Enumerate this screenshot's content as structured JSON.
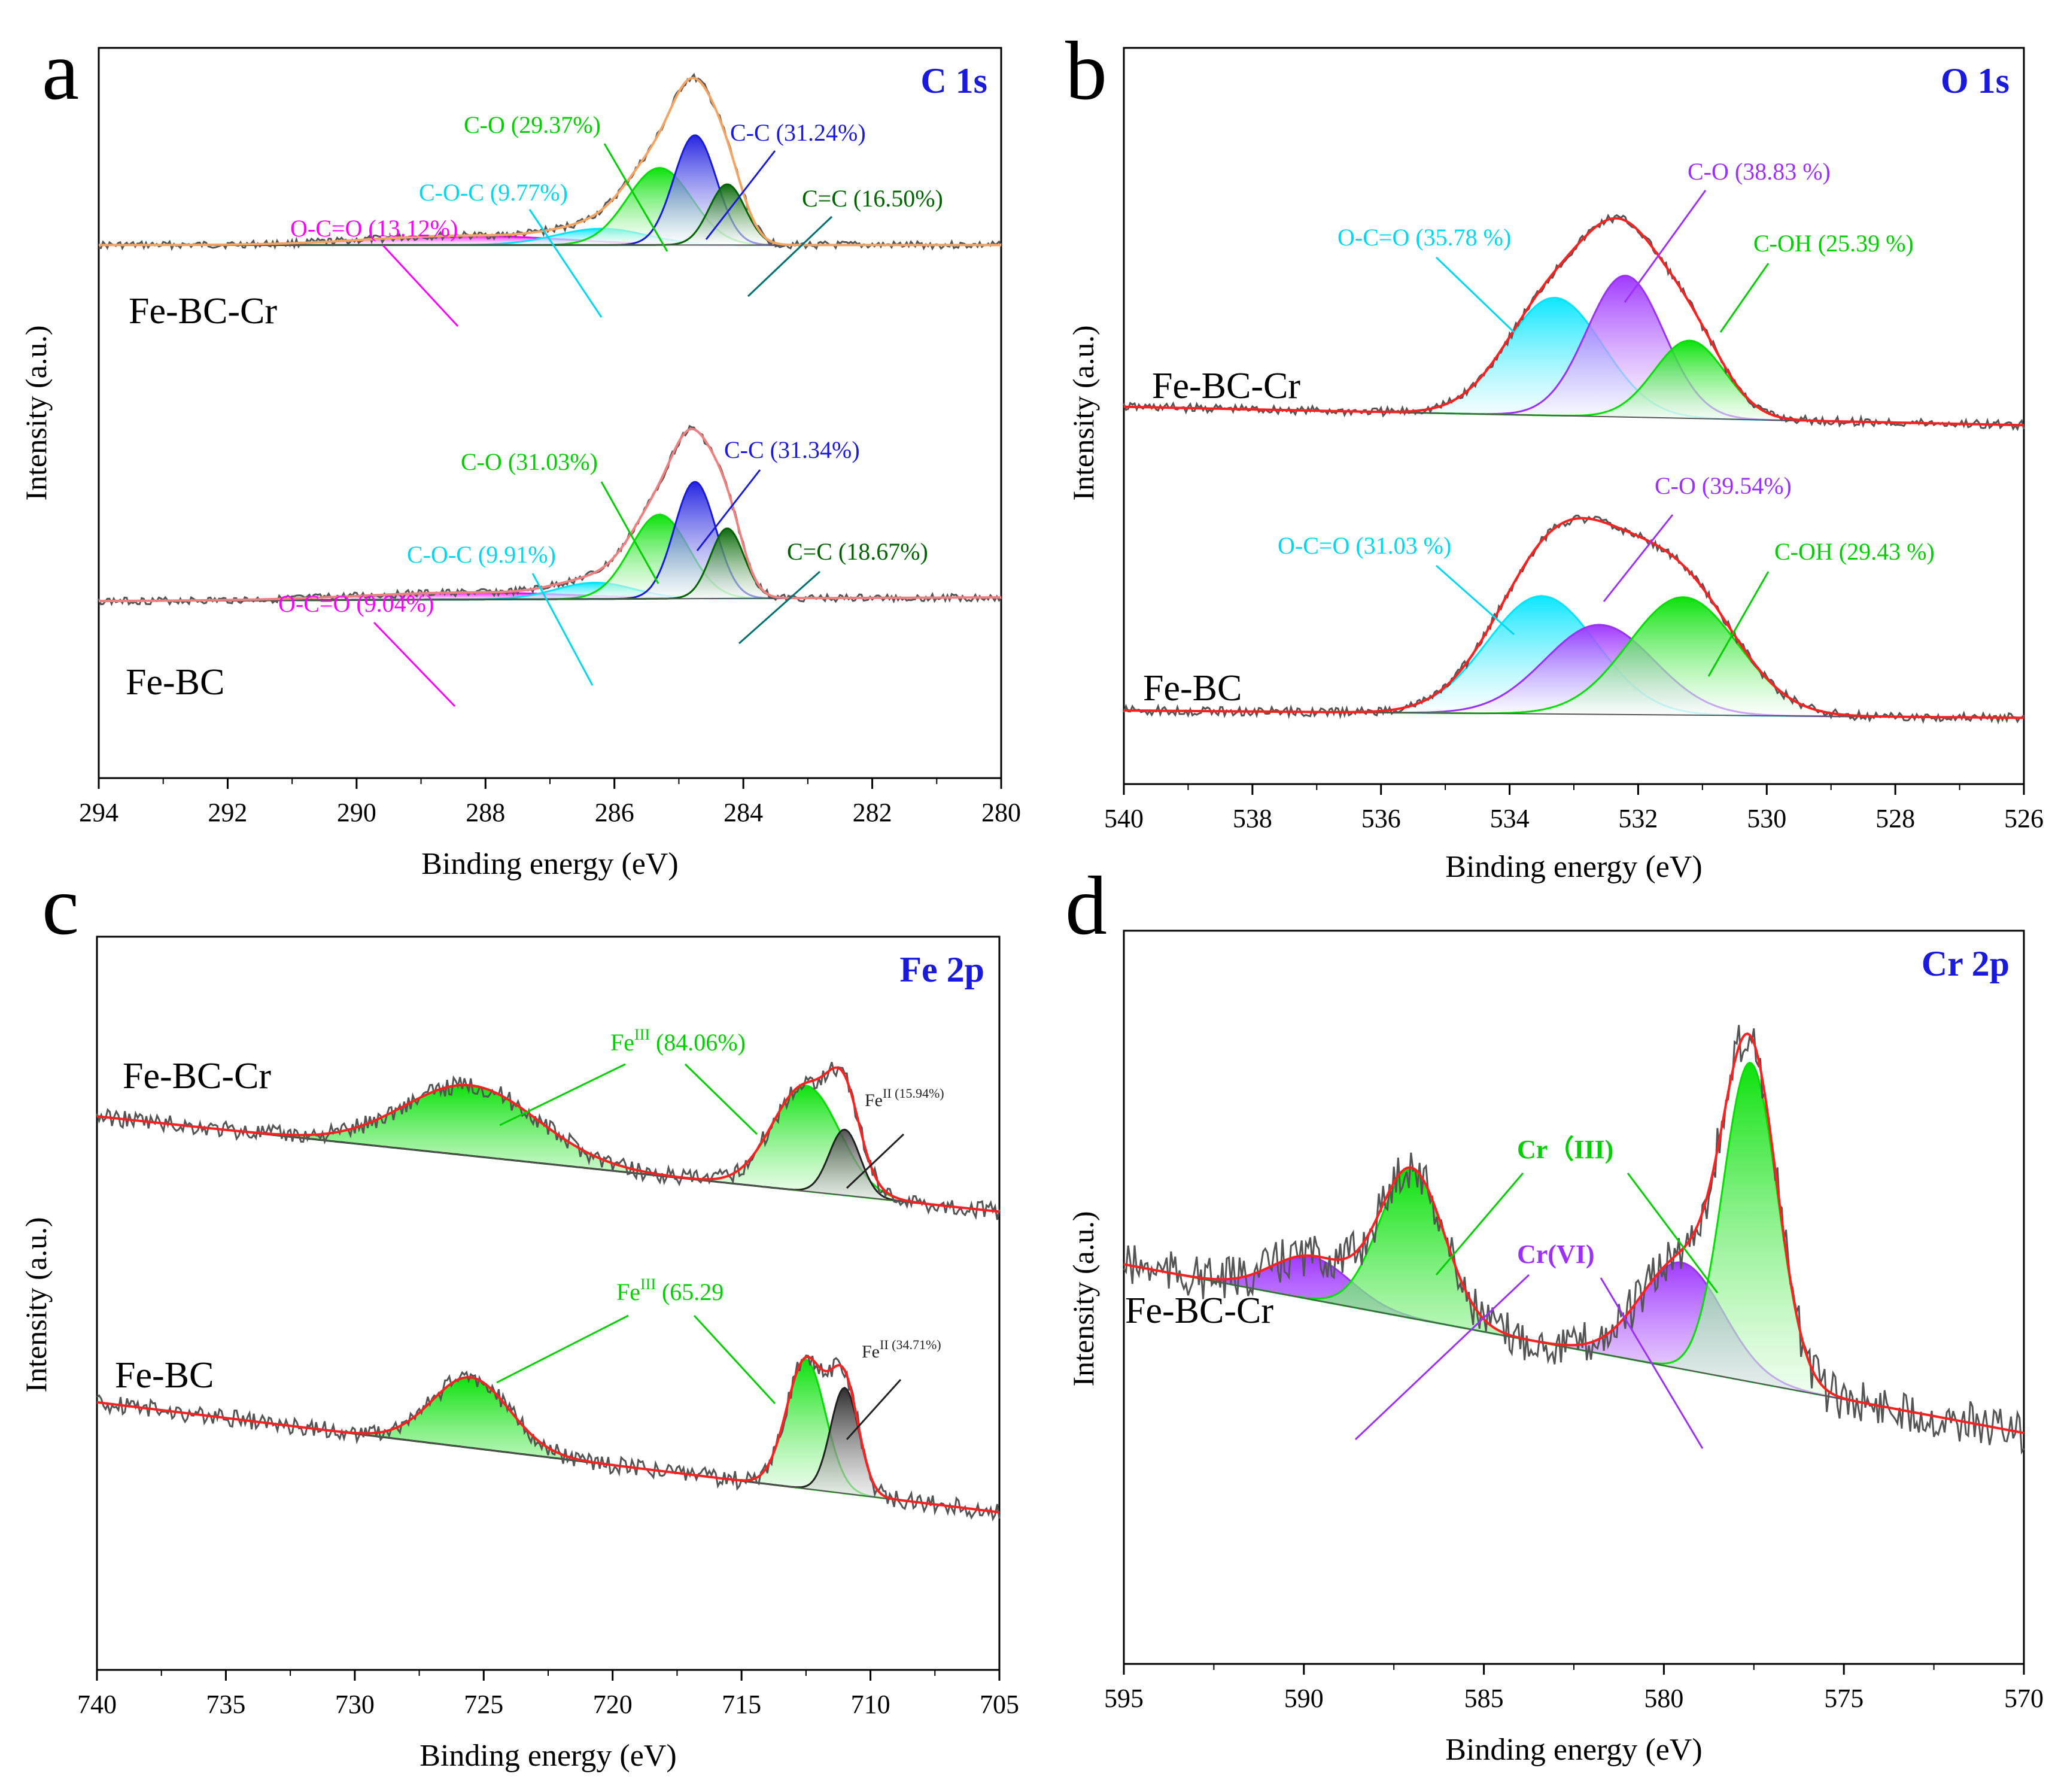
{
  "chart_data": [
    {
      "type": "line",
      "panel_letter": "a",
      "title": "C 1s",
      "xlabel": "Binding energy (eV)",
      "ylabel": "Intensity (a.u.)",
      "xlim": [
        294,
        280
      ],
      "xticks": [
        "294",
        "292",
        "290",
        "288",
        "286",
        "284",
        "282",
        "280"
      ],
      "samples": [
        {
          "label": "Fe-BC-Cr",
          "baseline": 0.27,
          "baseline_slope": 0.0,
          "scale": 0.32,
          "noise": 0.005,
          "envelope_color": "#f4a460",
          "components": [
            {
              "name": "O-C=O",
              "label": "O-C=O (13.12%)",
              "center": 288.3,
              "sigma": 1.5,
              "amp": 0.04,
              "color": "#ff00ff"
            },
            {
              "name": "C-O-C",
              "label": "C-O-C (9.77%)",
              "center": 286.2,
              "sigma": 0.7,
              "amp": 0.07,
              "color": "#00e5ff"
            },
            {
              "name": "C-O",
              "label": "C-O (29.37%)",
              "center": 285.3,
              "sigma": 0.5,
              "amp": 0.33,
              "color": "#00e000"
            },
            {
              "name": "C-C",
              "label": "C-C (31.24%)",
              "center": 284.75,
              "sigma": 0.33,
              "amp": 0.47,
              "color": "#1a1adf"
            },
            {
              "name": "C=C",
              "label": "C=C (16.50%)",
              "center": 284.25,
              "sigma": 0.28,
              "amp": 0.26,
              "color": "#006400"
            }
          ]
        },
        {
          "label": "Fe-BC",
          "baseline": 0.755,
          "baseline_slope": -0.005,
          "scale": 0.32,
          "noise": 0.005,
          "envelope_color": "#f08080",
          "components": [
            {
              "name": "O-C=O",
              "label": "O-C=O (9.04%)",
              "center": 288.3,
              "sigma": 1.6,
              "amp": 0.03,
              "color": "#ff00ff"
            },
            {
              "name": "C-O-C",
              "label": "C-O-C (9.91%)",
              "center": 286.3,
              "sigma": 0.6,
              "amp": 0.07,
              "color": "#00e5ff"
            },
            {
              "name": "C-O",
              "label": "C-O (31.03%)",
              "center": 285.3,
              "sigma": 0.45,
              "amp": 0.36,
              "color": "#00e000"
            },
            {
              "name": "C-C",
              "label": "C-C (31.34%)",
              "center": 284.75,
              "sigma": 0.32,
              "amp": 0.5,
              "color": "#1a1adf"
            },
            {
              "name": "C=C",
              "label": "C=C (18.67%)",
              "center": 284.25,
              "sigma": 0.26,
              "amp": 0.3,
              "color": "#006400"
            }
          ]
        }
      ]
    },
    {
      "type": "line",
      "panel_letter": "b",
      "title": "O 1s",
      "xlabel": "Binding energy (eV)",
      "ylabel": "Intensity (a.u.)",
      "xlim": [
        540,
        526
      ],
      "xticks": [
        "540",
        "538",
        "536",
        "534",
        "532",
        "530",
        "528",
        "526"
      ],
      "samples": [
        {
          "label": "Fe-BC-Cr",
          "baseline": 0.5,
          "baseline_slope": 0.025,
          "scale": 0.32,
          "noise": 0.006,
          "envelope_color": "#ff2020",
          "components": [
            {
              "name": "O-C=O",
              "label": "O-C=O (35.78 %)",
              "center": 533.3,
              "sigma": 0.75,
              "amp": 0.5,
              "color": "#00e5ff"
            },
            {
              "name": "C-O",
              "label": "C-O (38.83 %)",
              "center": 532.2,
              "sigma": 0.6,
              "amp": 0.6,
              "color": "#9b30ff"
            },
            {
              "name": "C-OH",
              "label": "C-OH (25.39 %)",
              "center": 531.2,
              "sigma": 0.55,
              "amp": 0.33,
              "color": "#00e000"
            }
          ]
        },
        {
          "label": "Fe-BC",
          "baseline": 0.905,
          "baseline_slope": 0.01,
          "scale": 0.32,
          "noise": 0.006,
          "envelope_color": "#ff2020",
          "components": [
            {
              "name": "O-C=O",
              "label": "O-C=O (31.03 %)",
              "center": 533.5,
              "sigma": 0.85,
              "amp": 0.5,
              "color": "#00e5ff"
            },
            {
              "name": "C-O",
              "label": "C-O (39.54%)",
              "center": 532.6,
              "sigma": 0.85,
              "amp": 0.38,
              "color": "#9b30ff"
            },
            {
              "name": "C-OH",
              "label": "C-OH (29.43 %)",
              "center": 531.3,
              "sigma": 0.85,
              "amp": 0.5,
              "color": "#00e000"
            }
          ]
        }
      ]
    },
    {
      "type": "line",
      "panel_letter": "c",
      "title": "Fe 2p",
      "xlabel": "Binding energy (eV)",
      "ylabel": "Intensity (a.u.)",
      "xlim": [
        740,
        705
      ],
      "xticks": [
        "740",
        "735",
        "730",
        "725",
        "720",
        "715",
        "710",
        "705"
      ],
      "samples": [
        {
          "label": "Fe-BC-Cr",
          "baseline": 0.31,
          "baseline_slope": 0.13,
          "scale": 0.32,
          "noise": 0.012,
          "envelope_color": "#ff2020",
          "components": [
            {
              "name": "FeIII-2p1/2",
              "label": "FeIII (84.06%)",
              "center": 725.5,
              "sigma": 2.6,
              "amp": 0.3,
              "color": "#00e000"
            },
            {
              "name": "FeIII-2p3/2",
              "label": "FeIII (84.06%)",
              "center": 712.5,
              "sigma": 1.3,
              "amp": 0.45,
              "color": "#00e000"
            },
            {
              "name": "FeII",
              "label": "FeII (15.94%)",
              "center": 711.0,
              "sigma": 0.6,
              "amp": 0.28,
              "color": "#222222"
            }
          ]
        },
        {
          "label": "Fe-BC",
          "baseline": 0.71,
          "baseline_slope": 0.15,
          "scale": 0.32,
          "noise": 0.012,
          "envelope_color": "#ff2020",
          "components": [
            {
              "name": "FeIII-2p1/2",
              "label": "FeIII (65.29",
              "center": 725.5,
              "sigma": 1.5,
              "amp": 0.3,
              "color": "#00e000"
            },
            {
              "name": "FeIII-2p3/2",
              "label": "FeIII (65.29",
              "center": 712.5,
              "sigma": 0.75,
              "amp": 0.55,
              "color": "#00e000"
            },
            {
              "name": "FeII",
              "label": "FeII (34.71%)",
              "center": 711.0,
              "sigma": 0.55,
              "amp": 0.45,
              "color": "#222222"
            }
          ]
        }
      ]
    },
    {
      "type": "line",
      "panel_letter": "d",
      "title": "Cr 2p",
      "xlabel": "Binding energy (eV)",
      "ylabel": "Intensity (a.u.)",
      "xlim": [
        595,
        570
      ],
      "xticks": [
        "595",
        "590",
        "585",
        "580",
        "575",
        "570"
      ],
      "samples": [
        {
          "label": "Fe-BC-Cr",
          "baseline": 0.57,
          "baseline_slope": 0.23,
          "scale": 0.58,
          "noise": 0.03,
          "envelope_color": "#ff2020",
          "components": [
            {
              "name": "CrVI-a",
              "label": "Cr(VI)",
              "center": 589.8,
              "sigma": 1.1,
              "amp": 0.1,
              "color": "#9b30ff"
            },
            {
              "name": "CrIII-a",
              "label": "Cr（III)",
              "center": 587.0,
              "sigma": 0.9,
              "amp": 0.35,
              "color": "#00e000"
            },
            {
              "name": "CrVI-b",
              "label": "Cr(VI)",
              "center": 579.5,
              "sigma": 1.15,
              "amp": 0.25,
              "color": "#9b30ff"
            },
            {
              "name": "CrIII-b",
              "label": "Cr（III)",
              "center": 577.6,
              "sigma": 0.75,
              "amp": 0.75,
              "color": "#00e000"
            }
          ]
        }
      ]
    }
  ],
  "panel_text": {
    "a": {
      "sample_labels": [
        "Fe-BC-Cr",
        "Fe-BC"
      ]
    },
    "b": {
      "sample_labels": [
        "Fe-BC-Cr",
        "Fe-BC"
      ]
    },
    "c": {
      "sample_labels": [
        "Fe-BC-Cr",
        "Fe-BC"
      ]
    },
    "d": {
      "sample_labels": [
        "Fe-BC-Cr"
      ]
    }
  },
  "colors": {
    "raw_data": "#555555",
    "axis": "#000000",
    "panel_letter": "#000000",
    "title_color": "#1a1adf"
  }
}
